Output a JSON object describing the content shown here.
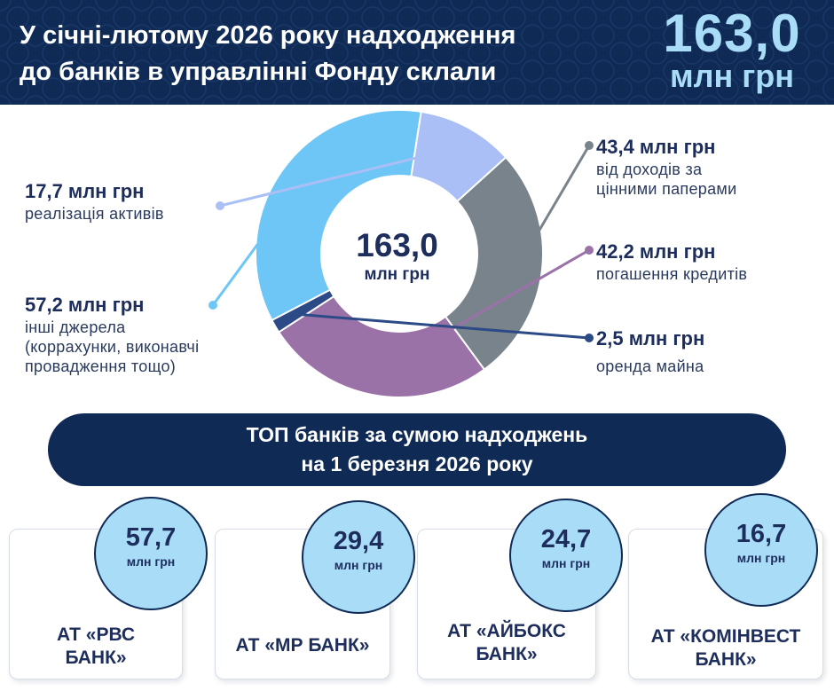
{
  "header": {
    "title_line1": "У січні-лютому 2026 року надходження",
    "title_line2": "до банків в управлінні Фонду склали",
    "total_value": "163,0",
    "total_unit": "млн грн"
  },
  "center": {
    "value": "163,0",
    "unit": "млн грн"
  },
  "callouts": {
    "securities": {
      "value": "43,4 млн грн",
      "desc_line1": "від доходів за",
      "desc_line2": "цінними паперами"
    },
    "loans": {
      "value": "42,2 млн грн",
      "desc": "погашення кредитів"
    },
    "rent": {
      "value": "2,5 млн грн",
      "desc": "оренда майна"
    },
    "assets": {
      "value": "17,7  млн грн",
      "desc": "реалізація активів"
    },
    "other": {
      "value": "57,2 млн грн",
      "desc_line1": "інші джерела",
      "desc_line2": "(корраxунки, виконавчі",
      "desc_line3": "провадження тощо)"
    }
  },
  "chart_data": {
    "type": "pie",
    "donut": true,
    "unit": "млн грн",
    "total": 163.0,
    "slices": [
      {
        "label": "від доходів за цінними паперами",
        "value": 43.4,
        "color": "#79838c"
      },
      {
        "label": "погашення кредитів",
        "value": 42.2,
        "color": "#9b72a8"
      },
      {
        "label": "оренда майна",
        "value": 2.5,
        "color": "#2b4a86"
      },
      {
        "label": "інші джерела (коррахунки, виконавчі провадження тощо)",
        "value": 57.2,
        "color": "#6ec6f6"
      },
      {
        "label": "реалізація активів",
        "value": 17.7,
        "color": "#a9bff5"
      }
    ]
  },
  "banner": {
    "line1": "ТОП банків за сумою надходжень",
    "line2": "на 1 березня 2026 року"
  },
  "banks": [
    {
      "name_line1": "АТ «РВС",
      "name_line2": "БАНК»",
      "amount": "57,7",
      "unit": "млн грн"
    },
    {
      "name_line1": "АТ «МР БАНК»",
      "name_line2": "",
      "amount": "29,4",
      "unit": "млн грн"
    },
    {
      "name_line1": "АТ «АЙБОКС",
      "name_line2": "БАНК»",
      "amount": "24,7",
      "unit": "млн грн"
    },
    {
      "name_line1": "АТ «КОМІНВЕСТ",
      "name_line2": "БАНК»",
      "amount": "16,7",
      "unit": "млн грн"
    }
  ],
  "colors": {
    "navy": "#0f2a55",
    "accent_light_blue": "#a8dcf7",
    "text_dark": "#1d2d5c"
  }
}
